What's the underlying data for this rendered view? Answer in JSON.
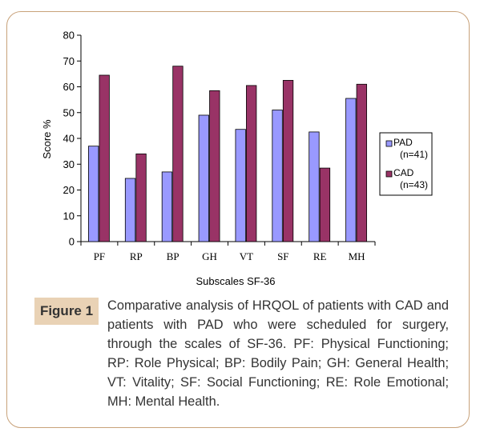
{
  "figure_label": "Figure 1",
  "caption": "Comparative analysis of HRQOL of patients with CAD and patients with PAD who were scheduled for surgery, through the scales of SF-36. PF: Physical Functioning; RP: Role Physical; BP: Bodily Pain; GH: General Health; VT: Vitality; SF: Social Functioning; RE: Role Emotional; MH: Mental Health.",
  "chart_data": {
    "type": "bar",
    "title": "",
    "xlabel": "Subscales SF-36",
    "ylabel": "Score %",
    "ylim": [
      0,
      80
    ],
    "yticks": [
      0,
      10,
      20,
      30,
      40,
      50,
      60,
      70,
      80
    ],
    "grid": false,
    "legend_position": "right",
    "categories": [
      "PF",
      "RP",
      "BP",
      "GH",
      "VT",
      "SF",
      "RE",
      "MH"
    ],
    "series": [
      {
        "name": "PAD",
        "legend_note": "(n=41)",
        "color": "#9999ff",
        "values": [
          37,
          24.5,
          27,
          49,
          43.5,
          51,
          42.5,
          55.5
        ]
      },
      {
        "name": "CAD",
        "legend_note": "(n=43)",
        "color": "#993366",
        "values": [
          64.5,
          34,
          68,
          58.5,
          60.5,
          62.5,
          28.5,
          61
        ]
      }
    ]
  }
}
